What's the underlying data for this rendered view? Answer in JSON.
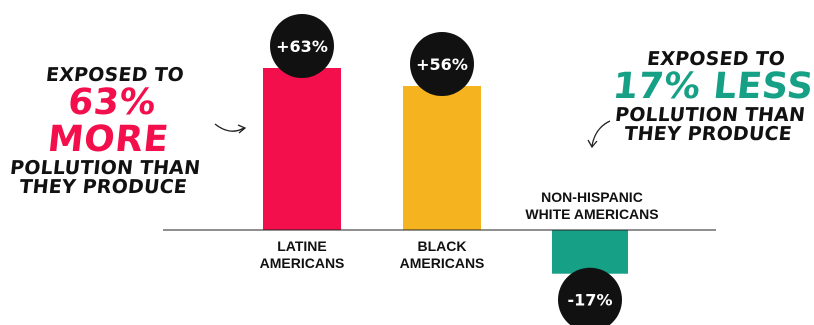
{
  "chart_data": {
    "type": "bar",
    "categories": [
      [
        "LATINE",
        "AMERICANS"
      ],
      [
        "BLACK",
        "AMERICANS"
      ],
      [
        "NON-HISPANIC",
        "WHITE AMERICANS"
      ]
    ],
    "values": [
      63,
      56,
      -17
    ],
    "data_labels": [
      "+63%",
      "+56%",
      "-17%"
    ],
    "bar_colors": [
      "#f20f4b",
      "#f5b41f",
      "#16a085"
    ],
    "label_circle_color": "#111111",
    "baseline": 0,
    "ylim": [
      -17,
      63
    ],
    "title": "",
    "xlabel": "",
    "ylabel": ""
  },
  "callouts": {
    "left": {
      "line1": "EXPOSED TO",
      "highlight": "63% MORE",
      "line3": "POLLUTION THAN",
      "line4": "THEY PRODUCE",
      "highlight_color": "#f20f4b"
    },
    "right": {
      "line1": "EXPOSED TO",
      "highlight": "17% LESS",
      "line3": "POLLUTION THAN",
      "line4": "THEY PRODUCE",
      "highlight_color": "#16a085"
    }
  }
}
